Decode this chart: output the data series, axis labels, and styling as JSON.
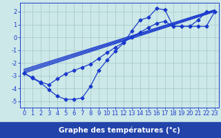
{
  "bg_color": "#cce8e8",
  "grid_color": "#aacccc",
  "line_color": "#1a3acc",
  "axis_label_bg": "#2244aa",
  "xlabel": "Graphe des températures (°c)",
  "xlabel_fontsize": 7.5,
  "xlabel_color": "#ffffff",
  "tick_fontsize": 6.0,
  "tick_color": "#1a3acc",
  "xlim": [
    -0.5,
    23.5
  ],
  "ylim": [
    -5.5,
    2.7
  ],
  "yticks": [
    -5,
    -4,
    -3,
    -2,
    -1,
    0,
    1,
    2
  ],
  "xticks": [
    0,
    1,
    2,
    3,
    4,
    5,
    6,
    7,
    8,
    9,
    10,
    11,
    12,
    13,
    14,
    15,
    16,
    17,
    18,
    19,
    20,
    21,
    22,
    23
  ],
  "curve1_x": [
    0,
    1,
    2,
    3,
    4,
    5,
    6,
    7,
    8,
    9,
    10,
    11,
    12,
    13,
    14,
    15,
    16,
    17,
    18,
    19,
    20,
    21,
    22,
    23
  ],
  "curve1_y": [
    -2.8,
    -3.2,
    -3.55,
    -4.1,
    -4.6,
    -4.85,
    -4.85,
    -4.75,
    -3.85,
    -2.6,
    -1.8,
    -1.1,
    -0.45,
    0.5,
    1.35,
    1.55,
    2.25,
    2.15,
    0.85,
    0.85,
    0.85,
    1.35,
    2.0,
    2.0
  ],
  "curve2_x": [
    0,
    1,
    2,
    3,
    4,
    5,
    6,
    7,
    8,
    9,
    10,
    11,
    12,
    13,
    14,
    15,
    16,
    17,
    18,
    19,
    20,
    21,
    22,
    23
  ],
  "curve2_y": [
    -2.8,
    -3.15,
    -3.5,
    -3.7,
    -3.25,
    -2.85,
    -2.6,
    -2.35,
    -2.1,
    -1.65,
    -1.2,
    -0.8,
    -0.4,
    0.0,
    0.4,
    0.75,
    1.1,
    1.25,
    0.85,
    0.85,
    0.85,
    0.85,
    0.85,
    2.0
  ],
  "trend_lines": [
    {
      "x": [
        0,
        23
      ],
      "y": [
        -2.8,
        2.0
      ]
    },
    {
      "x": [
        0,
        23
      ],
      "y": [
        -2.7,
        2.05
      ]
    },
    {
      "x": [
        0,
        23
      ],
      "y": [
        -2.6,
        2.1
      ]
    },
    {
      "x": [
        0,
        23
      ],
      "y": [
        -2.5,
        2.15
      ]
    }
  ]
}
